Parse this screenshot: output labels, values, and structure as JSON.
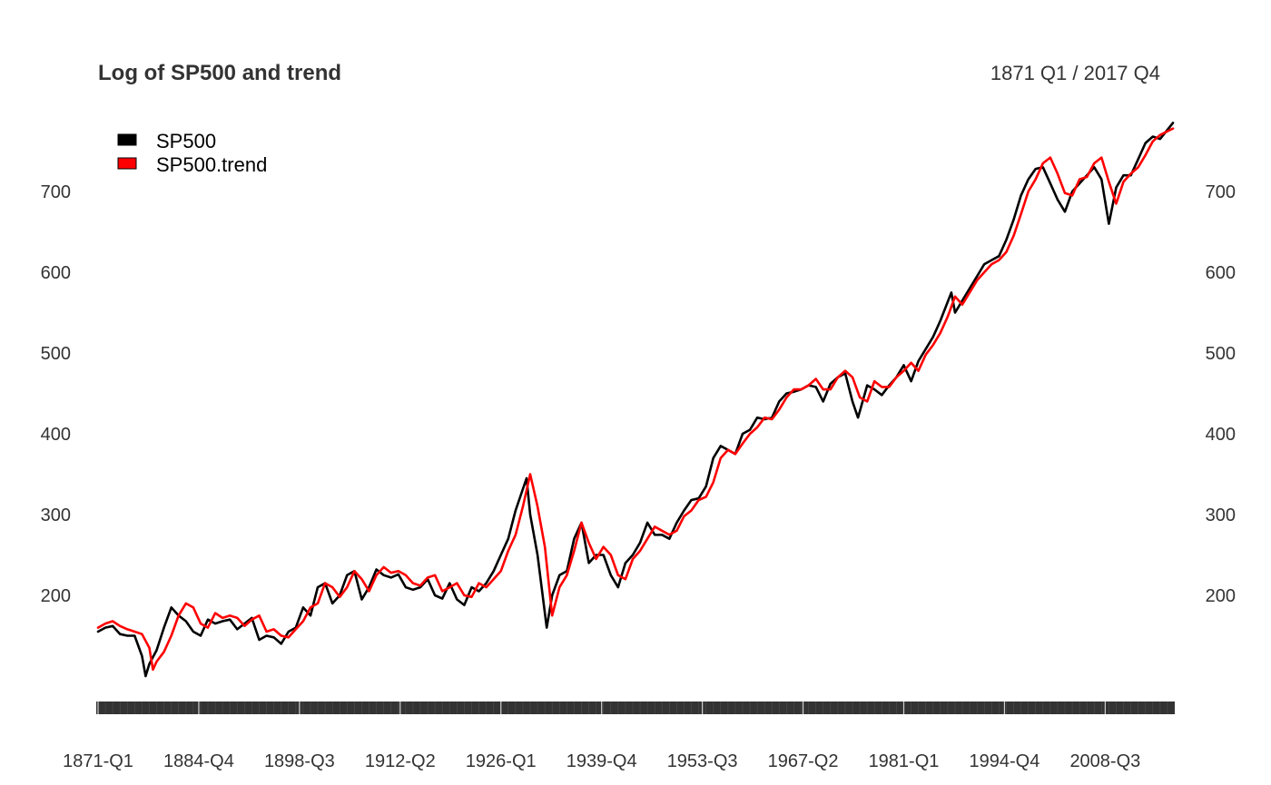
{
  "chart_data": {
    "type": "line",
    "title": "Log of SP500 and trend",
    "date_range": "1871 Q1 / 2017 Q4",
    "xlabel": "",
    "ylabel": "",
    "x_start": "1871-Q1",
    "x_end": "2017-Q4",
    "x_tick_labels": [
      "1871-Q1",
      "1884-Q4",
      "1898-Q3",
      "1912-Q2",
      "1926-Q1",
      "1939-Q4",
      "1953-Q3",
      "1967-Q2",
      "1981-Q1",
      "1994-Q4",
      "2008-Q3"
    ],
    "y_ticks": [
      200,
      300,
      400,
      500,
      600,
      700
    ],
    "ylim": [
      50,
      800
    ],
    "grid": false,
    "legend_position": "top-left",
    "series": [
      {
        "name": "SP500",
        "color": "#000000",
        "points": [
          [
            "1871-Q1",
            155
          ],
          [
            "1872-Q1",
            160
          ],
          [
            "1873-Q1",
            162
          ],
          [
            "1874-Q1",
            152
          ],
          [
            "1875-Q1",
            150
          ],
          [
            "1876-Q1",
            150
          ],
          [
            "1877-Q1",
            125
          ],
          [
            "1877-Q3",
            100
          ],
          [
            "1878-Q1",
            115
          ],
          [
            "1879-Q1",
            132
          ],
          [
            "1880-Q1",
            160
          ],
          [
            "1881-Q1",
            185
          ],
          [
            "1882-Q1",
            175
          ],
          [
            "1883-Q1",
            168
          ],
          [
            "1884-Q1",
            155
          ],
          [
            "1885-Q1",
            150
          ],
          [
            "1886-Q1",
            170
          ],
          [
            "1887-Q1",
            165
          ],
          [
            "1888-Q1",
            168
          ],
          [
            "1889-Q1",
            170
          ],
          [
            "1890-Q1",
            158
          ],
          [
            "1891-Q1",
            165
          ],
          [
            "1892-Q1",
            172
          ],
          [
            "1893-Q1",
            145
          ],
          [
            "1894-Q1",
            150
          ],
          [
            "1895-Q1",
            148
          ],
          [
            "1896-Q1",
            140
          ],
          [
            "1897-Q1",
            155
          ],
          [
            "1898-Q1",
            160
          ],
          [
            "1899-Q1",
            185
          ],
          [
            "1900-Q1",
            175
          ],
          [
            "1901-Q1",
            210
          ],
          [
            "1902-Q1",
            215
          ],
          [
            "1903-Q1",
            190
          ],
          [
            "1904-Q1",
            200
          ],
          [
            "1905-Q1",
            225
          ],
          [
            "1906-Q1",
            230
          ],
          [
            "1907-Q1",
            195
          ],
          [
            "1908-Q1",
            210
          ],
          [
            "1909-Q1",
            232
          ],
          [
            "1910-Q1",
            225
          ],
          [
            "1911-Q1",
            222
          ],
          [
            "1912-Q1",
            226
          ],
          [
            "1913-Q1",
            210
          ],
          [
            "1914-Q1",
            207
          ],
          [
            "1915-Q1",
            210
          ],
          [
            "1916-Q1",
            220
          ],
          [
            "1917-Q1",
            200
          ],
          [
            "1918-Q1",
            196
          ],
          [
            "1919-Q1",
            215
          ],
          [
            "1920-Q1",
            195
          ],
          [
            "1921-Q1",
            188
          ],
          [
            "1922-Q1",
            210
          ],
          [
            "1923-Q1",
            205
          ],
          [
            "1924-Q1",
            215
          ],
          [
            "1925-Q1",
            230
          ],
          [
            "1926-Q1",
            250
          ],
          [
            "1927-Q1",
            270
          ],
          [
            "1928-Q1",
            305
          ],
          [
            "1929-Q3",
            345
          ],
          [
            "1930-Q1",
            300
          ],
          [
            "1931-Q1",
            250
          ],
          [
            "1932-Q2",
            160
          ],
          [
            "1933-Q1",
            200
          ],
          [
            "1934-Q1",
            225
          ],
          [
            "1935-Q1",
            230
          ],
          [
            "1936-Q1",
            270
          ],
          [
            "1937-Q1",
            290
          ],
          [
            "1938-Q1",
            240
          ],
          [
            "1939-Q1",
            250
          ],
          [
            "1940-Q1",
            250
          ],
          [
            "1941-Q1",
            225
          ],
          [
            "1942-Q1",
            210
          ],
          [
            "1943-Q1",
            240
          ],
          [
            "1944-Q1",
            250
          ],
          [
            "1945-Q1",
            265
          ],
          [
            "1946-Q1",
            290
          ],
          [
            "1947-Q1",
            275
          ],
          [
            "1948-Q1",
            275
          ],
          [
            "1949-Q1",
            270
          ],
          [
            "1950-Q1",
            290
          ],
          [
            "1951-Q1",
            305
          ],
          [
            "1952-Q1",
            318
          ],
          [
            "1953-Q1",
            320
          ],
          [
            "1954-Q1",
            335
          ],
          [
            "1955-Q1",
            370
          ],
          [
            "1956-Q1",
            385
          ],
          [
            "1957-Q1",
            380
          ],
          [
            "1958-Q1",
            375
          ],
          [
            "1959-Q1",
            400
          ],
          [
            "1960-Q1",
            405
          ],
          [
            "1961-Q1",
            420
          ],
          [
            "1962-Q1",
            418
          ],
          [
            "1963-Q1",
            420
          ],
          [
            "1964-Q1",
            440
          ],
          [
            "1965-Q1",
            450
          ],
          [
            "1966-Q1",
            452
          ],
          [
            "1967-Q1",
            455
          ],
          [
            "1968-Q1",
            460
          ],
          [
            "1969-Q1",
            458
          ],
          [
            "1970-Q1",
            440
          ],
          [
            "1971-Q1",
            462
          ],
          [
            "1972-Q1",
            470
          ],
          [
            "1973-Q1",
            475
          ],
          [
            "1974-Q1",
            440
          ],
          [
            "1974-Q4",
            420
          ],
          [
            "1976-Q1",
            460
          ],
          [
            "1977-Q1",
            455
          ],
          [
            "1978-Q1",
            448
          ],
          [
            "1979-Q1",
            460
          ],
          [
            "1980-Q1",
            470
          ],
          [
            "1981-Q1",
            485
          ],
          [
            "1982-Q1",
            465
          ],
          [
            "1983-Q1",
            490
          ],
          [
            "1984-Q1",
            505
          ],
          [
            "1985-Q1",
            520
          ],
          [
            "1986-Q1",
            540
          ],
          [
            "1987-Q3",
            575
          ],
          [
            "1988-Q1",
            550
          ],
          [
            "1989-Q1",
            565
          ],
          [
            "1990-Q1",
            580
          ],
          [
            "1991-Q1",
            595
          ],
          [
            "1992-Q1",
            610
          ],
          [
            "1993-Q1",
            615
          ],
          [
            "1994-Q1",
            620
          ],
          [
            "1995-Q1",
            640
          ],
          [
            "1996-Q1",
            665
          ],
          [
            "1997-Q1",
            695
          ],
          [
            "1998-Q1",
            715
          ],
          [
            "1999-Q1",
            728
          ],
          [
            "2000-Q1",
            730
          ],
          [
            "2001-Q1",
            710
          ],
          [
            "2002-Q1",
            690
          ],
          [
            "2003-Q1",
            675
          ],
          [
            "2004-Q1",
            700
          ],
          [
            "2005-Q1",
            710
          ],
          [
            "2006-Q1",
            720
          ],
          [
            "2007-Q1",
            730
          ],
          [
            "2008-Q1",
            715
          ],
          [
            "2009-Q1",
            660
          ],
          [
            "2010-Q1",
            705
          ],
          [
            "2011-Q1",
            720
          ],
          [
            "2012-Q1",
            720
          ],
          [
            "2013-Q1",
            740
          ],
          [
            "2014-Q1",
            760
          ],
          [
            "2015-Q1",
            768
          ],
          [
            "2016-Q1",
            765
          ],
          [
            "2017-Q4",
            785
          ]
        ]
      },
      {
        "name": "SP500.trend",
        "color": "#ff0000",
        "points": [
          [
            "1871-Q1",
            160
          ],
          [
            "1872-Q1",
            165
          ],
          [
            "1873-Q1",
            168
          ],
          [
            "1874-Q1",
            162
          ],
          [
            "1875-Q1",
            158
          ],
          [
            "1876-Q1",
            155
          ],
          [
            "1877-Q1",
            152
          ],
          [
            "1878-Q1",
            135
          ],
          [
            "1878-Q3",
            108
          ],
          [
            "1879-Q1",
            118
          ],
          [
            "1880-Q1",
            130
          ],
          [
            "1881-Q1",
            150
          ],
          [
            "1882-Q1",
            175
          ],
          [
            "1883-Q1",
            190
          ],
          [
            "1884-Q1",
            185
          ],
          [
            "1885-Q1",
            165
          ],
          [
            "1886-Q1",
            160
          ],
          [
            "1887-Q1",
            178
          ],
          [
            "1888-Q1",
            172
          ],
          [
            "1889-Q1",
            175
          ],
          [
            "1890-Q1",
            172
          ],
          [
            "1891-Q1",
            162
          ],
          [
            "1892-Q1",
            170
          ],
          [
            "1893-Q1",
            175
          ],
          [
            "1894-Q1",
            155
          ],
          [
            "1895-Q1",
            158
          ],
          [
            "1896-Q1",
            150
          ],
          [
            "1897-Q1",
            148
          ],
          [
            "1898-Q1",
            158
          ],
          [
            "1899-Q1",
            168
          ],
          [
            "1900-Q1",
            185
          ],
          [
            "1901-Q1",
            190
          ],
          [
            "1902-Q1",
            215
          ],
          [
            "1903-Q1",
            210
          ],
          [
            "1904-Q1",
            198
          ],
          [
            "1905-Q1",
            210
          ],
          [
            "1906-Q1",
            230
          ],
          [
            "1907-Q1",
            220
          ],
          [
            "1908-Q1",
            205
          ],
          [
            "1909-Q1",
            225
          ],
          [
            "1910-Q1",
            235
          ],
          [
            "1911-Q1",
            228
          ],
          [
            "1912-Q1",
            230
          ],
          [
            "1913-Q1",
            225
          ],
          [
            "1914-Q1",
            215
          ],
          [
            "1915-Q1",
            212
          ],
          [
            "1916-Q1",
            222
          ],
          [
            "1917-Q1",
            225
          ],
          [
            "1918-Q1",
            205
          ],
          [
            "1919-Q1",
            210
          ],
          [
            "1920-Q1",
            215
          ],
          [
            "1921-Q1",
            200
          ],
          [
            "1922-Q1",
            198
          ],
          [
            "1923-Q1",
            215
          ],
          [
            "1924-Q1",
            210
          ],
          [
            "1925-Q1",
            220
          ],
          [
            "1926-Q1",
            230
          ],
          [
            "1927-Q1",
            255
          ],
          [
            "1928-Q1",
            275
          ],
          [
            "1929-Q1",
            310
          ],
          [
            "1930-Q1",
            350
          ],
          [
            "1931-Q1",
            310
          ],
          [
            "1932-Q1",
            260
          ],
          [
            "1933-Q1",
            175
          ],
          [
            "1934-Q1",
            210
          ],
          [
            "1935-Q1",
            225
          ],
          [
            "1936-Q1",
            255
          ],
          [
            "1937-Q1",
            290
          ],
          [
            "1938-Q1",
            265
          ],
          [
            "1939-Q1",
            245
          ],
          [
            "1940-Q1",
            260
          ],
          [
            "1941-Q1",
            250
          ],
          [
            "1942-Q1",
            225
          ],
          [
            "1943-Q1",
            220
          ],
          [
            "1944-Q1",
            245
          ],
          [
            "1945-Q1",
            255
          ],
          [
            "1946-Q1",
            270
          ],
          [
            "1947-Q1",
            285
          ],
          [
            "1948-Q1",
            280
          ],
          [
            "1949-Q1",
            275
          ],
          [
            "1950-Q1",
            280
          ],
          [
            "1951-Q1",
            298
          ],
          [
            "1952-Q1",
            305
          ],
          [
            "1953-Q1",
            318
          ],
          [
            "1954-Q1",
            322
          ],
          [
            "1955-Q1",
            340
          ],
          [
            "1956-Q1",
            370
          ],
          [
            "1957-Q1",
            380
          ],
          [
            "1958-Q1",
            375
          ],
          [
            "1959-Q1",
            388
          ],
          [
            "1960-Q1",
            400
          ],
          [
            "1961-Q1",
            408
          ],
          [
            "1962-Q1",
            420
          ],
          [
            "1963-Q1",
            418
          ],
          [
            "1964-Q1",
            430
          ],
          [
            "1965-Q1",
            445
          ],
          [
            "1966-Q1",
            455
          ],
          [
            "1967-Q1",
            455
          ],
          [
            "1968-Q1",
            460
          ],
          [
            "1969-Q1",
            468
          ],
          [
            "1970-Q1",
            455
          ],
          [
            "1971-Q1",
            455
          ],
          [
            "1972-Q1",
            470
          ],
          [
            "1973-Q1",
            478
          ],
          [
            "1974-Q1",
            470
          ],
          [
            "1975-Q1",
            445
          ],
          [
            "1976-Q1",
            440
          ],
          [
            "1977-Q1",
            465
          ],
          [
            "1978-Q1",
            458
          ],
          [
            "1979-Q1",
            458
          ],
          [
            "1980-Q1",
            470
          ],
          [
            "1981-Q1",
            478
          ],
          [
            "1982-Q1",
            488
          ],
          [
            "1983-Q1",
            478
          ],
          [
            "1984-Q1",
            498
          ],
          [
            "1985-Q1",
            510
          ],
          [
            "1986-Q1",
            525
          ],
          [
            "1987-Q1",
            545
          ],
          [
            "1988-Q1",
            570
          ],
          [
            "1989-Q1",
            560
          ],
          [
            "1990-Q1",
            575
          ],
          [
            "1991-Q1",
            590
          ],
          [
            "1992-Q1",
            600
          ],
          [
            "1993-Q1",
            610
          ],
          [
            "1994-Q1",
            615
          ],
          [
            "1995-Q1",
            625
          ],
          [
            "1996-Q1",
            645
          ],
          [
            "1997-Q1",
            672
          ],
          [
            "1998-Q1",
            700
          ],
          [
            "1999-Q1",
            715
          ],
          [
            "2000-Q1",
            735
          ],
          [
            "2001-Q1",
            742
          ],
          [
            "2002-Q1",
            722
          ],
          [
            "2003-Q1",
            698
          ],
          [
            "2004-Q1",
            695
          ],
          [
            "2005-Q1",
            715
          ],
          [
            "2006-Q1",
            718
          ],
          [
            "2007-Q1",
            735
          ],
          [
            "2008-Q1",
            742
          ],
          [
            "2009-Q1",
            712
          ],
          [
            "2010-Q1",
            685
          ],
          [
            "2011-Q1",
            712
          ],
          [
            "2012-Q1",
            722
          ],
          [
            "2013-Q1",
            730
          ],
          [
            "2014-Q1",
            745
          ],
          [
            "2015-Q1",
            762
          ],
          [
            "2016-Q1",
            770
          ],
          [
            "2017-Q4",
            778
          ]
        ]
      }
    ]
  }
}
